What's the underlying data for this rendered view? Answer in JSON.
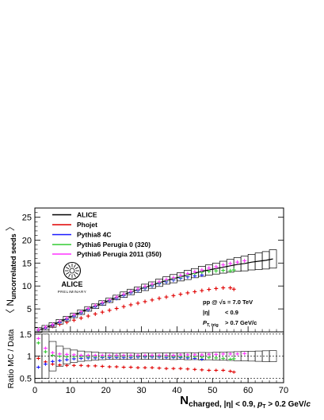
{
  "chart_data": {
    "type": "scatter",
    "x_range": [
      0,
      70
    ],
    "x_ticks": [
      0,
      10,
      20,
      30,
      40,
      50,
      60,
      70
    ],
    "x_tick_labels": [
      "0",
      "10",
      "20",
      "30",
      "40",
      "50",
      "60",
      "70"
    ],
    "xlabel": {
      "main": "N",
      "sub": "charged, |η| < 0.9, ",
      "pt": "p",
      "pt_sub": "T",
      "tail": " > 0.2 GeV/",
      "c": "c"
    },
    "top": {
      "ylim": [
        0,
        27
      ],
      "y_ticks": [
        5,
        10,
        15,
        20,
        25
      ],
      "y_tick_labels": [
        "5",
        "10",
        "15",
        "20",
        "25"
      ],
      "ylabel": {
        "open": "〈 N",
        "sub": "uncorrelated seeds",
        "close": " 〉"
      },
      "legend_position": "top-left",
      "logo": {
        "name": "ALICE",
        "tag": "PRELIMINARY"
      },
      "annotation": {
        "line1": "pp @ √s = 7.0 TeV",
        "line2_a": "|η|",
        "line2_b": "< 0.9",
        "line3_a": "P",
        "line3_sub": "T, trig",
        "line3_b": "> 0.7 GeV/c"
      }
    },
    "bottom": {
      "ylim": [
        0.4,
        1.55
      ],
      "y_ticks": [
        0.5,
        1,
        1.5
      ],
      "y_tick_labels": [
        "0.5",
        "1",
        "1.5"
      ],
      "ylabel": "Ratio MC / Data",
      "dashed_lines": [
        0.5,
        1,
        1.5
      ]
    },
    "series": [
      {
        "name": "ALICE",
        "color": "#000000",
        "marker": "box",
        "x": [
          1,
          3,
          5,
          7,
          9,
          11,
          13,
          15,
          17,
          19,
          21,
          23,
          25,
          27,
          29,
          31,
          33,
          35,
          37,
          39,
          41,
          43,
          45,
          47,
          49,
          51,
          53,
          55,
          57,
          59,
          61,
          63,
          65,
          67
        ],
        "y": [
          0.4,
          0.9,
          1.5,
          2.2,
          2.9,
          3.6,
          4.3,
          5.0,
          5.6,
          6.3,
          6.9,
          7.5,
          8.1,
          8.7,
          9.2,
          9.7,
          10.2,
          10.7,
          11.2,
          11.6,
          12.0,
          12.4,
          12.8,
          13.2,
          13.5,
          13.8,
          14.1,
          14.4,
          14.7,
          14.9,
          15.2,
          15.4,
          15.6,
          15.9
        ],
        "err": [
          0.5,
          0.5,
          0.5,
          0.5,
          0.5,
          0.5,
          0.5,
          0.5,
          0.5,
          0.5,
          0.5,
          0.5,
          0.6,
          0.6,
          0.6,
          0.7,
          0.7,
          0.8,
          0.8,
          0.9,
          0.9,
          1.0,
          1.0,
          1.1,
          1.1,
          1.2,
          1.3,
          1.4,
          1.5,
          1.6,
          1.7,
          1.8,
          1.9,
          2.0
        ]
      },
      {
        "name": "Phojet",
        "color": "#e00000",
        "marker": "cross",
        "x": [
          1,
          3,
          5,
          7,
          9,
          11,
          13,
          15,
          17,
          19,
          21,
          23,
          25,
          27,
          29,
          31,
          33,
          35,
          37,
          39,
          41,
          43,
          45,
          47,
          49,
          51,
          53,
          55,
          56
        ],
        "y": [
          0.35,
          0.78,
          1.22,
          1.65,
          2.1,
          2.55,
          3.0,
          3.45,
          3.9,
          4.3,
          4.7,
          5.1,
          5.5,
          5.9,
          6.25,
          6.6,
          6.95,
          7.3,
          7.6,
          7.9,
          8.2,
          8.5,
          8.75,
          9.0,
          9.25,
          9.45,
          9.6,
          9.6,
          9.3
        ],
        "ratio": [
          0.95,
          0.87,
          0.82,
          0.8,
          0.79,
          0.79,
          0.79,
          0.78,
          0.78,
          0.77,
          0.76,
          0.76,
          0.75,
          0.75,
          0.74,
          0.74,
          0.74,
          0.73,
          0.72,
          0.72,
          0.72,
          0.71,
          0.7,
          0.69,
          0.68,
          0.68,
          0.68,
          0.66,
          0.64
        ]
      },
      {
        "name": "Pythia8 4C",
        "color": "#1a1aff",
        "marker": "cross",
        "x": [
          1,
          3,
          5,
          7,
          9,
          11,
          13,
          15,
          17,
          19,
          21,
          23,
          25,
          27,
          29,
          31,
          33,
          35,
          37,
          39,
          41,
          43,
          45,
          47
        ],
        "y": [
          0.38,
          0.82,
          1.38,
          2.0,
          2.7,
          3.4,
          4.1,
          4.8,
          5.45,
          6.1,
          6.7,
          7.3,
          7.9,
          8.5,
          9.0,
          9.5,
          10.0,
          10.5,
          10.9,
          11.3,
          11.7,
          12.0,
          12.2,
          12.4
        ],
        "ratio": [
          0.75,
          0.82,
          0.88,
          0.9,
          0.92,
          0.94,
          0.95,
          0.96,
          0.96,
          0.97,
          0.97,
          0.97,
          0.97,
          0.97,
          0.98,
          0.98,
          0.98,
          0.98,
          0.97,
          0.97,
          0.97,
          0.96,
          0.95,
          0.93
        ]
      },
      {
        "name": "Pythia6 Perugia 0 (320)",
        "color": "#33cc33",
        "marker": "cross",
        "x": [
          1,
          3,
          5,
          7,
          9,
          11,
          13,
          15,
          17,
          19,
          21,
          23,
          25,
          27,
          29,
          31,
          33,
          35,
          37,
          39,
          41,
          43,
          45,
          47,
          49,
          51,
          53,
          55,
          56
        ],
        "y": [
          0.45,
          0.98,
          1.55,
          2.2,
          2.9,
          3.6,
          4.3,
          5.0,
          5.65,
          6.3,
          6.9,
          7.5,
          8.1,
          8.7,
          9.2,
          9.7,
          10.2,
          10.7,
          11.2,
          11.6,
          12.0,
          12.4,
          12.7,
          13.0,
          13.2,
          13.3,
          13.4,
          13.3,
          13.5
        ],
        "ratio": [
          1.3,
          1.1,
          1.02,
          1.0,
          0.99,
          0.99,
          0.99,
          0.99,
          0.99,
          0.99,
          1.0,
          1.0,
          1.0,
          1.0,
          1.0,
          1.0,
          1.0,
          1.0,
          1.0,
          0.99,
          0.99,
          0.99,
          0.99,
          0.98,
          0.97,
          0.96,
          0.95,
          0.93,
          0.94
        ]
      },
      {
        "name": "Pythia6 Perugia 2011 (350)",
        "color": "#ff33ff",
        "marker": "cross",
        "x": [
          1,
          3,
          5,
          7,
          9,
          11,
          13,
          15,
          17,
          19,
          21,
          23,
          25,
          27,
          29,
          31,
          33,
          35,
          37,
          39,
          41,
          43,
          45,
          47,
          49,
          51,
          53,
          55,
          57,
          59
        ],
        "y": [
          0.5,
          1.05,
          1.62,
          2.3,
          3.0,
          3.7,
          4.4,
          5.1,
          5.75,
          6.4,
          7.0,
          7.6,
          8.2,
          8.8,
          9.35,
          9.9,
          10.4,
          10.9,
          11.4,
          11.8,
          12.3,
          12.7,
          13.1,
          13.5,
          13.9,
          14.2,
          14.6,
          14.9,
          15.2,
          15.5
        ],
        "ratio": [
          1.4,
          1.18,
          1.08,
          1.05,
          1.04,
          1.03,
          1.02,
          1.02,
          1.02,
          1.02,
          1.02,
          1.02,
          1.02,
          1.02,
          1.02,
          1.02,
          1.02,
          1.02,
          1.02,
          1.02,
          1.03,
          1.03,
          1.03,
          1.03,
          1.04,
          1.04,
          1.05,
          1.05,
          1.05,
          1.06
        ]
      }
    ]
  }
}
